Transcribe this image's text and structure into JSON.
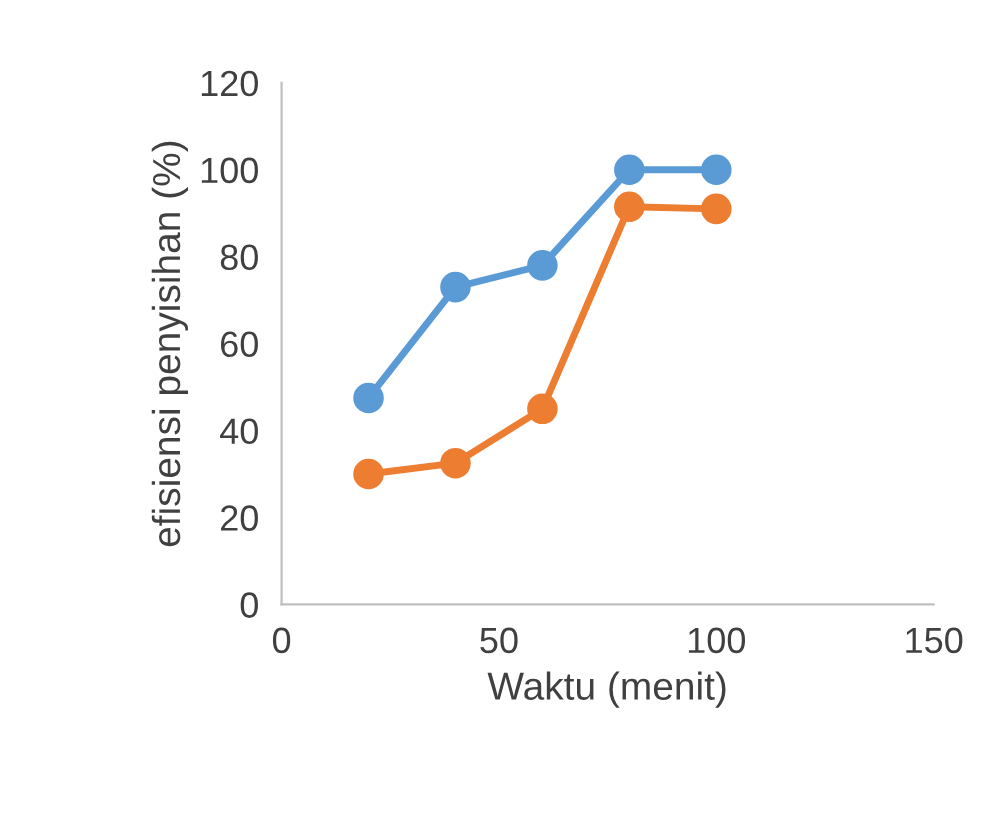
{
  "chart_data": {
    "type": "line",
    "xlabel": "Waktu (menit)",
    "ylabel": "efisiensi penyisihan (%)",
    "x": [
      20,
      40,
      60,
      80,
      100
    ],
    "series": [
      {
        "color": "#5b9bd5",
        "values": [
          47.5,
          73,
          78,
          100,
          100
        ]
      },
      {
        "color": "#ed7d31",
        "values": [
          30,
          32.5,
          45,
          91.5,
          91
        ]
      }
    ],
    "xlim": [
      0,
      150
    ],
    "xticks": [
      0,
      50,
      100,
      150
    ],
    "ylim": [
      0,
      120
    ],
    "yticks": [
      0,
      20,
      40,
      60,
      80,
      100,
      120
    ],
    "grid": false,
    "legend": false,
    "marker": "circle",
    "line_style": "solid"
  }
}
